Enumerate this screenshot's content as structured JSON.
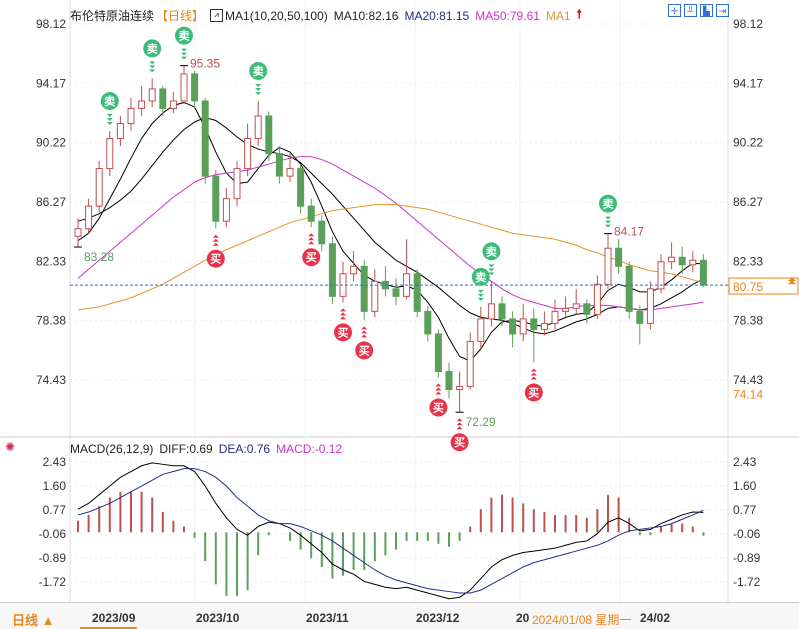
{
  "header": {
    "title": "布伦特原油连续",
    "period": "【日线】",
    "ma_label": "MA1(10,20,50,100)",
    "ma10": "MA10:82.16",
    "ma20": "MA20:81.15",
    "ma50": "MA50:79.61",
    "ma100": "MA1",
    "arrow_icon": "red-up-arrow"
  },
  "toolbar": {
    "icons": [
      "crosshair-icon",
      "chart-compare-icon",
      "chart-indicator-icon",
      "exit-icon"
    ]
  },
  "macd_header": {
    "label": "MACD(26,12,9)",
    "diff": "DIFF:0.69",
    "dea": "DEA:0.76",
    "macd": "MACD:-0.12",
    "icon": "indicator-settings-icon"
  },
  "colors": {
    "up": "#c0504d",
    "down": "#5aa05a",
    "ma10": "#000000",
    "ma20": "#000000",
    "ma50": "#cc33cc",
    "ma100": "#e0962a",
    "sell": "#3dbb7a",
    "buy": "#e8334a",
    "price_line": "#2f6fd6",
    "accent": "#e8861a"
  },
  "bottom": {
    "period_button": "日线 ▲",
    "crosshair_date": "2024/01/08 星期一"
  },
  "chart_data": [
    {
      "type": "candlestick",
      "title": "布伦特原油连续",
      "y_ticks": [
        "98.12",
        "94.17",
        "90.22",
        "86.27",
        "82.33",
        "78.38",
        "74.43"
      ],
      "ylim": [
        72.0,
        98.12
      ],
      "x_ticks": [
        {
          "label": "2023/09",
          "index": 3
        },
        {
          "label": "2023/10",
          "index": 12
        },
        {
          "label": "2023/11",
          "index": 22
        },
        {
          "label": "2023/12",
          "index": 33
        },
        {
          "label": "20",
          "index": 41
        },
        {
          "label": "24/02",
          "index": 53
        }
      ],
      "current_price": "80.75",
      "side_label": "74.14",
      "annotations": [
        {
          "index": 10,
          "text": "95.35",
          "kind": "high"
        },
        {
          "index": 0,
          "text": "83.28",
          "kind": "low"
        },
        {
          "index": 36,
          "text": "72.29",
          "kind": "low"
        },
        {
          "index": 50,
          "text": "84.17",
          "kind": "high"
        }
      ],
      "candles_ohlc": [
        [
          84.0,
          85.2,
          83.28,
          84.5
        ],
        [
          84.5,
          86.5,
          84.2,
          86
        ],
        [
          86,
          89,
          85.6,
          88.5
        ],
        [
          88.5,
          91,
          88,
          90.5
        ],
        [
          90.5,
          92,
          90,
          91.5
        ],
        [
          91.5,
          93.2,
          91,
          92.5
        ],
        [
          92.5,
          94,
          92,
          93
        ],
        [
          93,
          94.5,
          92.6,
          93.8
        ],
        [
          93.8,
          94,
          92,
          92.5
        ],
        [
          92.5,
          93.6,
          92.2,
          93
        ],
        [
          93,
          95.35,
          92.8,
          94.8
        ],
        [
          94.8,
          95,
          92.5,
          93
        ],
        [
          93,
          93.2,
          87.5,
          88
        ],
        [
          88,
          88.4,
          84.5,
          85
        ],
        [
          85,
          87.2,
          84.6,
          86.5
        ],
        [
          86.5,
          89,
          86,
          88.5
        ],
        [
          88.5,
          91.5,
          88,
          90.5
        ],
        [
          90.5,
          93,
          90,
          92
        ],
        [
          92,
          92.3,
          89,
          89.5
        ],
        [
          89.5,
          90,
          87.5,
          88
        ],
        [
          88,
          89.5,
          87.6,
          88.5
        ],
        [
          88.5,
          88.8,
          85.5,
          86
        ],
        [
          86,
          86.5,
          84.6,
          85
        ],
        [
          85,
          85.4,
          83,
          83.5
        ],
        [
          83.5,
          84,
          79.5,
          80
        ],
        [
          80,
          82.3,
          79.6,
          81.5
        ],
        [
          81.5,
          83,
          81,
          82
        ],
        [
          82,
          82.4,
          78.4,
          79
        ],
        [
          79,
          81.8,
          78.6,
          81
        ],
        [
          81,
          82,
          80,
          80.5
        ],
        [
          80.5,
          81.2,
          79.4,
          80
        ],
        [
          80,
          83.8,
          79.8,
          81.5
        ],
        [
          81.5,
          81.8,
          78.6,
          79
        ],
        [
          79,
          79.4,
          77,
          77.5
        ],
        [
          77.5,
          77.8,
          74.6,
          75
        ],
        [
          75,
          75.6,
          73.2,
          73.8
        ],
        [
          73.8,
          75,
          72.29,
          74
        ],
        [
          74,
          77.6,
          73.8,
          77
        ],
        [
          77,
          79.3,
          76.6,
          78.5
        ],
        [
          78.5,
          81,
          78,
          79.5
        ],
        [
          79.5,
          80,
          78,
          78.5
        ],
        [
          78.5,
          79,
          76.6,
          77.5
        ],
        [
          77.5,
          79.5,
          77,
          78.5
        ],
        [
          78.5,
          79.2,
          75.6,
          77.8
        ],
        [
          77.8,
          79,
          77.4,
          78.2
        ],
        [
          78.2,
          79.8,
          77.8,
          79
        ],
        [
          79,
          80,
          78.5,
          79.2
        ],
        [
          79.2,
          80.5,
          78.8,
          79.5
        ],
        [
          79.5,
          79.8,
          78.2,
          78.8
        ],
        [
          78.8,
          81.4,
          78.5,
          80.8
        ],
        [
          80.8,
          84.17,
          80.5,
          83.2
        ],
        [
          83.2,
          83.8,
          81.5,
          82
        ],
        [
          82,
          82.3,
          78.5,
          79
        ],
        [
          79,
          79.4,
          76.8,
          78.2
        ],
        [
          78.2,
          81,
          77.8,
          80.5
        ],
        [
          80.5,
          82.8,
          80.2,
          82.3
        ],
        [
          82.3,
          83.6,
          81.8,
          82.6
        ],
        [
          82.6,
          83.3,
          81.5,
          82.1
        ],
        [
          82.1,
          83,
          81.6,
          82.4
        ],
        [
          82.4,
          82.8,
          80.6,
          80.75
        ]
      ],
      "series": [
        {
          "name": "MA10",
          "values": [
            83.7,
            84.2,
            85.2,
            86.5,
            87.8,
            89.2,
            90.5,
            91.5,
            92.2,
            92.7,
            92.9,
            92.6,
            91.2,
            89.6,
            88.2,
            87.5,
            87.6,
            88.5,
            89.4,
            89.9,
            89.6,
            88.8,
            87.6,
            86,
            84.3,
            83,
            82.2,
            81.4,
            81,
            80.8,
            80.6,
            80.7,
            80.4,
            79.6,
            78.6,
            77.2,
            76,
            75.7,
            76.5,
            77.6,
            78.3,
            78.4,
            78.3,
            78.1,
            78.0,
            78.3,
            78.6,
            78.8,
            78.9,
            79.5,
            80.4,
            80.8,
            80.6,
            80.3,
            80.3,
            80.6,
            81.1,
            81.7,
            82.2,
            82.16
          ]
        },
        {
          "name": "MA20",
          "values": [
            85.0,
            85.2,
            85.5,
            85.9,
            86.4,
            87,
            87.8,
            88.7,
            89.6,
            90.4,
            91.1,
            91.6,
            91.9,
            91.7,
            91.2,
            90.6,
            90.1,
            89.8,
            89.6,
            89.5,
            89.3,
            88.9,
            88.2,
            87.5,
            86.8,
            86,
            85.2,
            84.4,
            83.6,
            83,
            82.4,
            82,
            81.6,
            81.1,
            80.6,
            80,
            79.4,
            78.9,
            78.6,
            78.5,
            78.4,
            78.2,
            77.9,
            77.6,
            77.5,
            77.7,
            78,
            78.3,
            78.5,
            78.8,
            79.2,
            79.3,
            79.2,
            79.1,
            79.2,
            79.5,
            79.9,
            80.3,
            80.8,
            81.15
          ]
        },
        {
          "name": "MA50",
          "values": [
            81.2,
            81.8,
            82.4,
            83,
            83.6,
            84.2,
            84.8,
            85.4,
            86,
            86.6,
            87.1,
            87.6,
            87.9,
            88.1,
            88.2,
            88.3,
            88.4,
            88.6,
            88.8,
            89,
            89.2,
            89.3,
            89.3,
            89.1,
            88.8,
            88.4,
            88,
            87.6,
            87.2,
            86.7,
            86.2,
            85.6,
            85,
            84.4,
            83.8,
            83.2,
            82.6,
            82,
            81.5,
            81,
            80.5,
            80.1,
            79.8,
            79.6,
            79.4,
            79.2,
            79.2,
            79.3,
            79.4,
            79.4,
            79.4,
            79.3,
            79.2,
            79.1,
            79.1,
            79.2,
            79.3,
            79.4,
            79.5,
            79.61
          ]
        },
        {
          "name": "MA100",
          "values": [
            79.1,
            79.2,
            79.3,
            79.5,
            79.7,
            79.9,
            80.2,
            80.5,
            80.8,
            81.2,
            81.6,
            82,
            82.4,
            82.8,
            83.1,
            83.4,
            83.7,
            84,
            84.3,
            84.6,
            84.9,
            85.1,
            85.3,
            85.5,
            85.7,
            85.8,
            85.9,
            86,
            86.1,
            86.1,
            86.1,
            86,
            85.9,
            85.8,
            85.6,
            85.4,
            85.2,
            85,
            84.8,
            84.6,
            84.4,
            84.2,
            84.1,
            84,
            83.9,
            83.8,
            83.6,
            83.4,
            83.1,
            82.9,
            82.6,
            82.4,
            82.1,
            81.9,
            81.7,
            81.6,
            81.5,
            81.3,
            81.1,
            80.9
          ]
        }
      ],
      "signals": [
        {
          "index": 3,
          "type": "sell",
          "label": "卖"
        },
        {
          "index": 7,
          "type": "sell",
          "label": "卖"
        },
        {
          "index": 10,
          "type": "sell",
          "label": "卖"
        },
        {
          "index": 17,
          "type": "sell",
          "label": "卖"
        },
        {
          "index": 38,
          "type": "sell",
          "label": "卖"
        },
        {
          "index": 39,
          "type": "sell",
          "label": "卖"
        },
        {
          "index": 50,
          "type": "sell",
          "label": "卖"
        },
        {
          "index": 13,
          "type": "buy",
          "label": "买"
        },
        {
          "index": 22,
          "type": "buy",
          "label": "买"
        },
        {
          "index": 25,
          "type": "buy",
          "label": "买"
        },
        {
          "index": 27,
          "type": "buy",
          "label": "买"
        },
        {
          "index": 34,
          "type": "buy",
          "label": "买"
        },
        {
          "index": 36,
          "type": "buy",
          "label": "买"
        },
        {
          "index": 43,
          "type": "buy",
          "label": "买"
        }
      ]
    },
    {
      "type": "macd",
      "title": "MACD(26,12,9)",
      "y_ticks": [
        "2.43",
        "1.60",
        "0.77",
        "-0.06",
        "-0.89",
        "-1.72"
      ],
      "ylim": [
        -2.5,
        2.6
      ],
      "series": [
        {
          "name": "DIFF",
          "values": [
            0.8,
            1.0,
            1.3,
            1.6,
            1.9,
            2.1,
            2.3,
            2.4,
            2.35,
            2.3,
            2.3,
            2.1,
            1.6,
            1.0,
            0.5,
            0.1,
            -0.1,
            0.2,
            0.35,
            0.3,
            0.15,
            -0.1,
            -0.4,
            -0.7,
            -1.1,
            -1.3,
            -1.45,
            -1.7,
            -1.8,
            -1.9,
            -1.95,
            -1.9,
            -2.0,
            -2.1,
            -2.2,
            -2.3,
            -2.25,
            -2.0,
            -1.6,
            -1.2,
            -0.95,
            -0.8,
            -0.7,
            -0.65,
            -0.6,
            -0.55,
            -0.45,
            -0.35,
            -0.3,
            -0.05,
            0.35,
            0.5,
            0.3,
            0.05,
            0.1,
            0.3,
            0.45,
            0.6,
            0.7,
            0.69
          ]
        },
        {
          "name": "DEA",
          "values": [
            0.6,
            0.7,
            0.85,
            1.0,
            1.2,
            1.4,
            1.6,
            1.8,
            2.0,
            2.1,
            2.2,
            2.2,
            2.1,
            1.9,
            1.6,
            1.2,
            0.9,
            0.6,
            0.4,
            0.3,
            0.3,
            0.2,
            0.05,
            -0.1,
            -0.3,
            -0.55,
            -0.8,
            -1.05,
            -1.3,
            -1.5,
            -1.65,
            -1.75,
            -1.85,
            -1.95,
            -2.0,
            -2.05,
            -2.1,
            -2.1,
            -2.0,
            -1.8,
            -1.6,
            -1.4,
            -1.2,
            -1.05,
            -0.95,
            -0.85,
            -0.75,
            -0.65,
            -0.55,
            -0.45,
            -0.3,
            -0.1,
            0.05,
            0.1,
            0.15,
            0.2,
            0.3,
            0.45,
            0.6,
            0.76
          ]
        },
        {
          "name": "MACD",
          "values": [
            0.4,
            0.6,
            0.9,
            1.2,
            1.4,
            1.4,
            1.4,
            1.2,
            0.7,
            0.4,
            0.2,
            -0.2,
            -1.0,
            -1.8,
            -2.2,
            -2.2,
            -2.0,
            -0.8,
            -0.1,
            0,
            -0.3,
            -0.6,
            -0.9,
            -1.2,
            -1.6,
            -1.5,
            -1.3,
            -1.3,
            -1.0,
            -0.8,
            -0.6,
            -0.3,
            -0.3,
            -0.3,
            -0.4,
            -0.5,
            -0.3,
            0.2,
            0.8,
            1.2,
            1.3,
            1.2,
            1.0,
            0.8,
            0.7,
            0.6,
            0.6,
            0.6,
            0.5,
            0.8,
            1.3,
            1.2,
            0.5,
            -0.1,
            -0.1,
            0.2,
            0.3,
            0.3,
            0.2,
            -0.12
          ]
        }
      ]
    }
  ]
}
